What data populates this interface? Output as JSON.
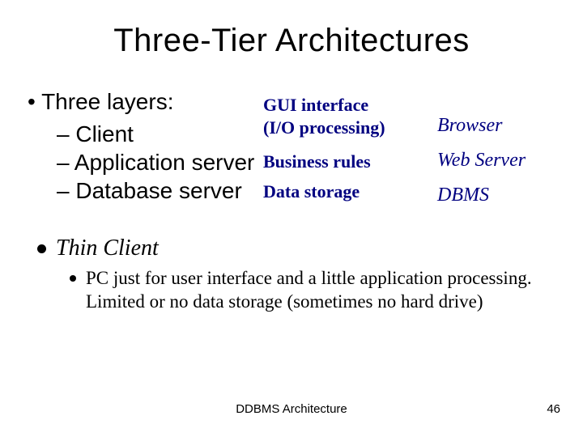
{
  "title": "Three-Tier Architectures",
  "bullet1": "• Three layers:",
  "sub_client": "– Client",
  "sub_app": "– Application server",
  "sub_db": "– Database server",
  "desc_gui": "GUI interface",
  "desc_io": "(I/O processing)",
  "desc_biz": "Business rules",
  "desc_storage": "Data storage",
  "ex_browser": "Browser",
  "ex_web": "Web Server",
  "ex_dbms": "DBMS",
  "thin_label": "Thin Client",
  "thin_desc": "PC just for user interface and a little application processing. Limited or no data storage (sometimes no hard drive)",
  "footer_center": "DDBMS Architecture",
  "footer_page": "46",
  "colors": {
    "text_black": "#000000",
    "text_navy": "#000080",
    "background": "#ffffff"
  },
  "fonts": {
    "title_size": 40,
    "body_size": 28,
    "desc_size": 22,
    "example_size": 24,
    "thin_desc_size": 23,
    "footer_size": 15
  }
}
